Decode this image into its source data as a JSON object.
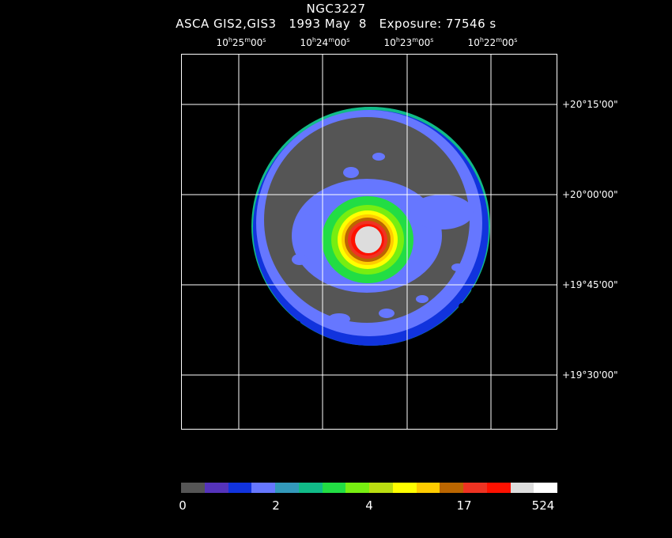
{
  "header": {
    "object": "NGC3227",
    "subtitle": "ASCA GIS2,GIS3   1993 May  8   Exposure: 77546 s"
  },
  "ra_ticks": [
    {
      "h": "10",
      "m": "25",
      "s": "00"
    },
    {
      "h": "10",
      "m": "24",
      "s": "00"
    },
    {
      "h": "10",
      "m": "23",
      "s": "00"
    },
    {
      "h": "10",
      "m": "22",
      "s": "00"
    }
  ],
  "dec_ticks": [
    "+20°15'00\"",
    "+20°00'00\"",
    "+19°45'00\"",
    "+19°30'00\""
  ],
  "colorbar": {
    "colors": [
      "#555555",
      "#5533bb",
      "#1133dd",
      "#6677ff",
      "#3399bb",
      "#11bb88",
      "#22dd44",
      "#77ee11",
      "#bbdd11",
      "#ffff00",
      "#ffcc00",
      "#bb6600",
      "#ee3322",
      "#ff1100",
      "#dddddd",
      "#ffffff"
    ],
    "labels": [
      "0",
      "2",
      "4",
      "17",
      "524"
    ]
  }
}
